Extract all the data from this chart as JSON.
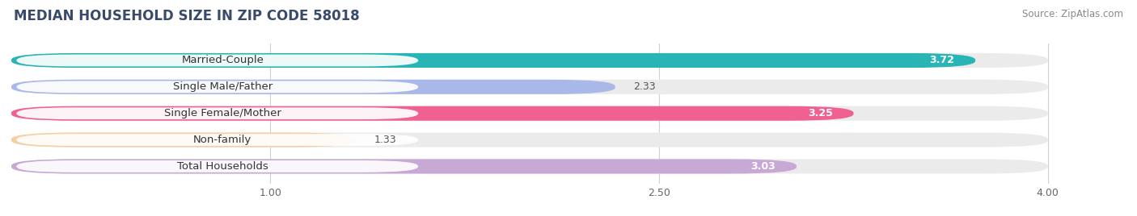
{
  "title": "MEDIAN HOUSEHOLD SIZE IN ZIP CODE 58018",
  "source": "Source: ZipAtlas.com",
  "categories": [
    "Married-Couple",
    "Single Male/Father",
    "Single Female/Mother",
    "Non-family",
    "Total Households"
  ],
  "values": [
    3.72,
    2.33,
    3.25,
    1.33,
    3.03
  ],
  "bar_colors": [
    "#29b5b5",
    "#a8b8e8",
    "#f06090",
    "#f5cfa0",
    "#c8a8d4"
  ],
  "bar_bg_colors": [
    "#ebebeb",
    "#ebebeb",
    "#ebebeb",
    "#ebebeb",
    "#ebebeb"
  ],
  "xlim": [
    0,
    4.3
  ],
  "xmin": 0,
  "xticks": [
    1.0,
    2.5,
    4.0
  ],
  "label_fontsize": 9.5,
  "value_fontsize": 9,
  "title_fontsize": 12,
  "source_fontsize": 8.5,
  "title_color": "#3a4a6b",
  "source_color": "#888888"
}
